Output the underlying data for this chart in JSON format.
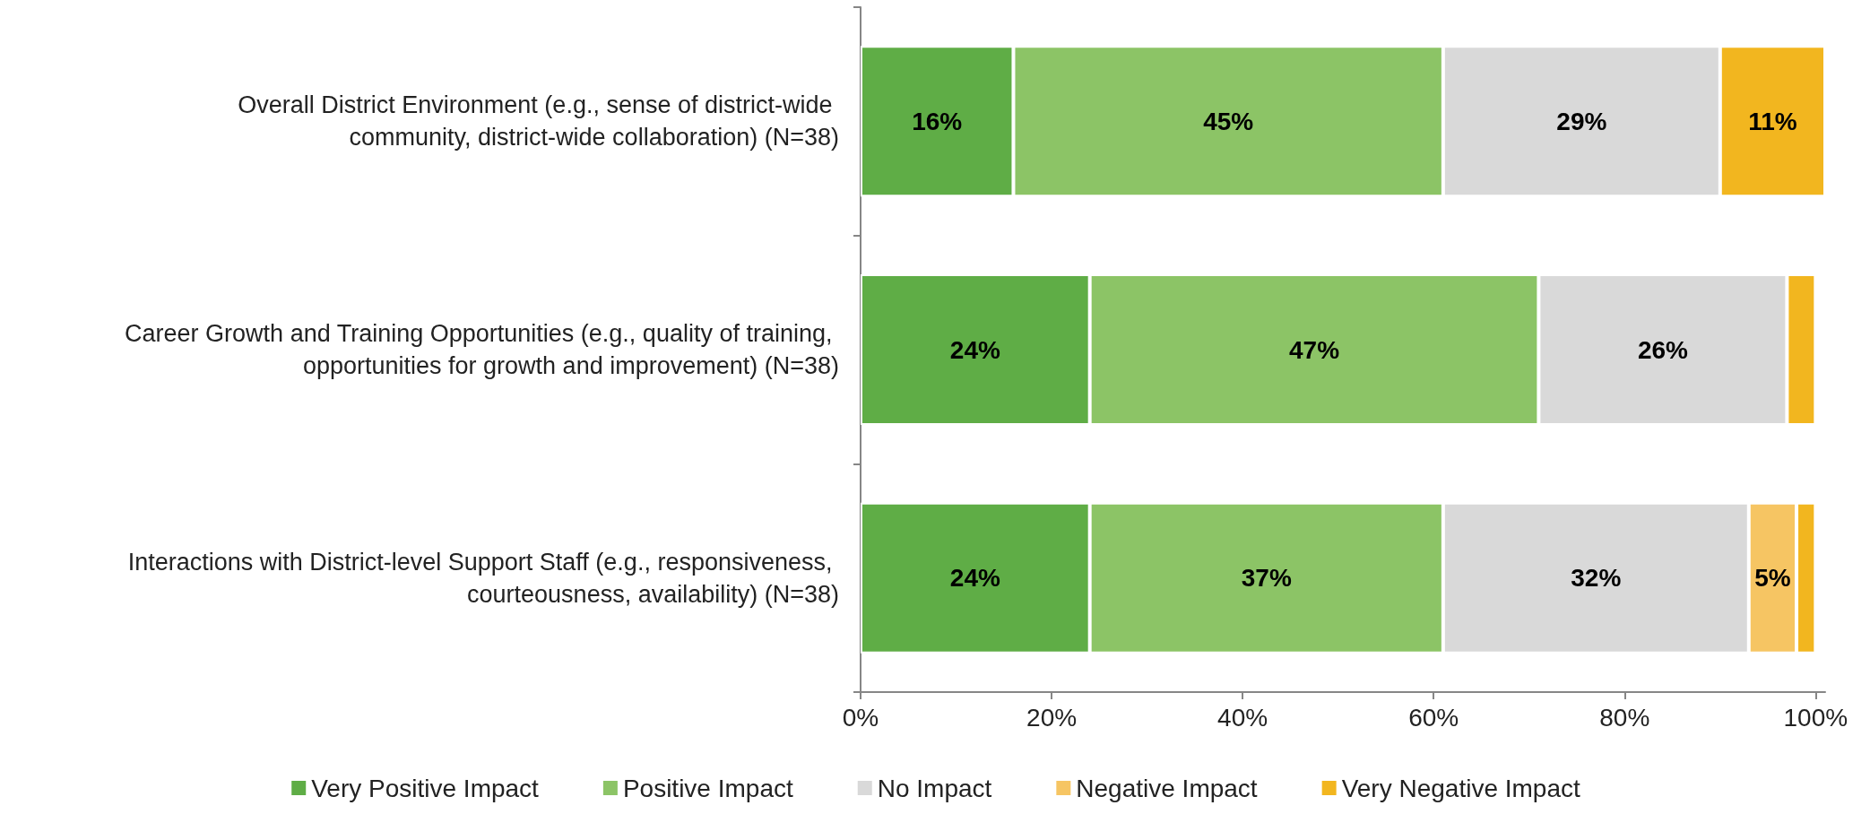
{
  "chart_data": {
    "type": "bar",
    "orientation": "horizontal",
    "stacked": true,
    "categories": [
      "Overall District Environment (e.g., sense of district-wide community, district-wide collaboration) (N=38)",
      "Career Growth and Training Opportunities (e.g., quality of training, opportunities for growth and improvement) (N=38)",
      "Interactions with District-level Support Staff (e.g., responsiveness, courteousness, availability) (N=38)"
    ],
    "series": [
      {
        "name": "Very Positive Impact",
        "color": "#5fad46",
        "values": [
          16,
          24,
          24
        ],
        "value_labels": [
          "16%",
          "24%",
          "24%"
        ]
      },
      {
        "name": "Positive Impact",
        "color": "#8cc466",
        "values": [
          45,
          47,
          37
        ],
        "value_labels": [
          "45%",
          "47%",
          "37%"
        ]
      },
      {
        "name": "No Impact",
        "color": "#d9d9d9",
        "values": [
          29,
          26,
          32
        ],
        "value_labels": [
          "29%",
          "26%",
          "32%"
        ]
      },
      {
        "name": "Negative Impact",
        "color": "#f6c563",
        "values": [
          null,
          null,
          5
        ],
        "value_labels": [
          null,
          null,
          "5%"
        ]
      },
      {
        "name": "Very Negative Impact",
        "color": "#f2b61f",
        "values": [
          11,
          3,
          2
        ],
        "value_labels": [
          "11%",
          null,
          null
        ]
      }
    ],
    "xlim": [
      0,
      101
    ],
    "xticks": [
      {
        "value": 0,
        "label": "0%"
      },
      {
        "value": 20,
        "label": "20%"
      },
      {
        "value": 40,
        "label": "40%"
      },
      {
        "value": 60,
        "label": "60%"
      },
      {
        "value": 80,
        "label": "80%"
      },
      {
        "value": 100,
        "label": "100%"
      }
    ],
    "grid": false,
    "legend": "bottom"
  }
}
